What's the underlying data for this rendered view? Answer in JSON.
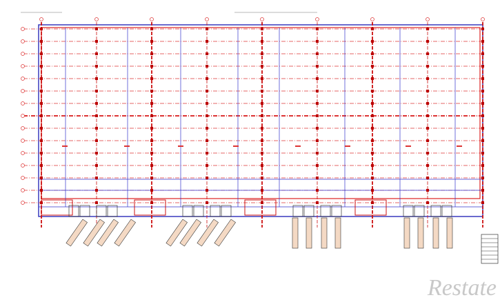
{
  "watermark": "Restate"
}
